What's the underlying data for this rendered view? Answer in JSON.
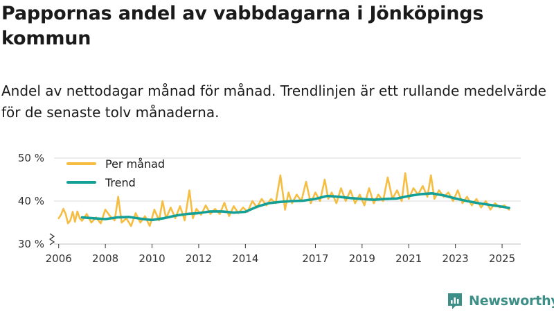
{
  "page": {
    "title": "Pappornas andel av vabbdagarna i Jönköpings kommun",
    "subtitle": "Andel av nettodagar månad för månad. Trendlinjen är ett rullande medelvärde för de senaste tolv månaderna.",
    "brand": "Newsworthy"
  },
  "colors": {
    "monthly": "#f5bd42",
    "trend": "#14a096",
    "grid": "#d9d9d9",
    "axis": "#333333",
    "brand": "#3c8f86"
  },
  "chart_data": {
    "type": "line",
    "title": "Pappornas andel av vabbdagarna i Jönköpings kommun",
    "xlabel": "",
    "ylabel": "",
    "ylim": [
      30,
      50
    ],
    "y_ticks": [
      30,
      40,
      50
    ],
    "y_tick_labels": [
      "30 %",
      "40 %",
      "50 %"
    ],
    "y_axis_break": true,
    "x_range": [
      2005.8,
      2025.8
    ],
    "x_ticks": [
      2006,
      2008,
      2010,
      2012,
      2014,
      2017,
      2019,
      2021,
      2023,
      2025
    ],
    "x_tick_labels": [
      "2006",
      "2008",
      "2010",
      "2012",
      "2014",
      "2017",
      "2019",
      "2021",
      "2023",
      "2025"
    ],
    "grid": true,
    "legend_position": "top-left",
    "series": [
      {
        "name": "Per månad",
        "x": [
          2006.0,
          2006.1,
          2006.2,
          2006.3,
          2006.4,
          2006.5,
          2006.6,
          2006.7,
          2006.8,
          2006.9,
          2007.0,
          2007.2,
          2007.4,
          2007.6,
          2007.8,
          2008.0,
          2008.2,
          2008.4,
          2008.55,
          2008.7,
          2008.9,
          2009.1,
          2009.3,
          2009.5,
          2009.7,
          2009.9,
          2010.1,
          2010.3,
          2010.45,
          2010.6,
          2010.8,
          2011.0,
          2011.2,
          2011.4,
          2011.6,
          2011.75,
          2011.9,
          2012.1,
          2012.3,
          2012.5,
          2012.7,
          2012.9,
          2013.1,
          2013.3,
          2013.5,
          2013.7,
          2013.9,
          2014.1,
          2014.3,
          2014.5,
          2014.7,
          2014.9,
          2015.1,
          2015.3,
          2015.5,
          2015.7,
          2015.85,
          2016.0,
          2016.2,
          2016.4,
          2016.6,
          2016.8,
          2017.0,
          2017.2,
          2017.4,
          2017.55,
          2017.7,
          2017.9,
          2018.1,
          2018.3,
          2018.5,
          2018.7,
          2018.9,
          2019.1,
          2019.3,
          2019.5,
          2019.7,
          2019.9,
          2020.1,
          2020.3,
          2020.5,
          2020.7,
          2020.85,
          2021.0,
          2021.2,
          2021.4,
          2021.6,
          2021.8,
          2021.95,
          2022.1,
          2022.3,
          2022.5,
          2022.7,
          2022.9,
          2023.1,
          2023.3,
          2023.5,
          2023.7,
          2023.9,
          2024.1,
          2024.3,
          2024.5,
          2024.7,
          2024.9,
          2025.1,
          2025.3
        ],
        "values": [
          36.0,
          36.8,
          38.2,
          37.0,
          34.8,
          35.5,
          37.5,
          35.2,
          37.6,
          36.0,
          35.4,
          37.0,
          35.0,
          36.2,
          34.8,
          38.0,
          36.5,
          35.5,
          41.0,
          35.0,
          36.0,
          34.2,
          37.2,
          35.0,
          36.5,
          34.2,
          38.0,
          35.5,
          40.0,
          36.0,
          38.5,
          36.0,
          38.8,
          35.5,
          42.5,
          36.0,
          38.2,
          36.8,
          39.0,
          37.0,
          38.2,
          37.0,
          39.6,
          36.5,
          38.8,
          37.2,
          38.5,
          37.5,
          40.0,
          38.5,
          40.5,
          39.0,
          40.5,
          39.5,
          46.0,
          38.0,
          42.0,
          39.5,
          41.5,
          40.0,
          44.5,
          39.5,
          42.0,
          40.0,
          45.0,
          40.5,
          42.0,
          39.5,
          43.0,
          40.0,
          42.5,
          39.5,
          41.5,
          39.0,
          43.0,
          39.5,
          41.5,
          40.0,
          45.5,
          40.5,
          42.5,
          40.0,
          46.5,
          40.5,
          43.0,
          41.5,
          43.5,
          41.0,
          46.0,
          40.5,
          42.5,
          41.0,
          42.0,
          40.0,
          42.5,
          39.5,
          41.0,
          39.0,
          40.5,
          38.5,
          40.0,
          38.0,
          39.5,
          38.5,
          39.0,
          38.0
        ]
      },
      {
        "name": "Trend",
        "x": [
          2007.0,
          2007.5,
          2008.0,
          2008.5,
          2009.0,
          2009.5,
          2010.0,
          2010.5,
          2011.0,
          2011.5,
          2012.0,
          2012.5,
          2013.0,
          2013.5,
          2014.0,
          2014.5,
          2015.0,
          2015.5,
          2016.0,
          2016.5,
          2017.0,
          2017.5,
          2018.0,
          2018.5,
          2019.0,
          2019.5,
          2020.0,
          2020.5,
          2021.0,
          2021.5,
          2022.0,
          2022.5,
          2023.0,
          2023.5,
          2024.0,
          2024.5,
          2025.0,
          2025.3
        ],
        "values": [
          36.2,
          36.0,
          35.8,
          36.2,
          36.3,
          35.9,
          35.6,
          36.0,
          36.6,
          37.0,
          37.2,
          37.6,
          37.6,
          37.3,
          37.5,
          38.7,
          39.5,
          39.8,
          40.0,
          40.1,
          40.5,
          41.2,
          41.0,
          40.7,
          40.5,
          40.3,
          40.5,
          40.6,
          41.2,
          41.6,
          41.8,
          41.3,
          40.6,
          40.0,
          39.5,
          39.1,
          38.7,
          38.4
        ]
      }
    ]
  }
}
